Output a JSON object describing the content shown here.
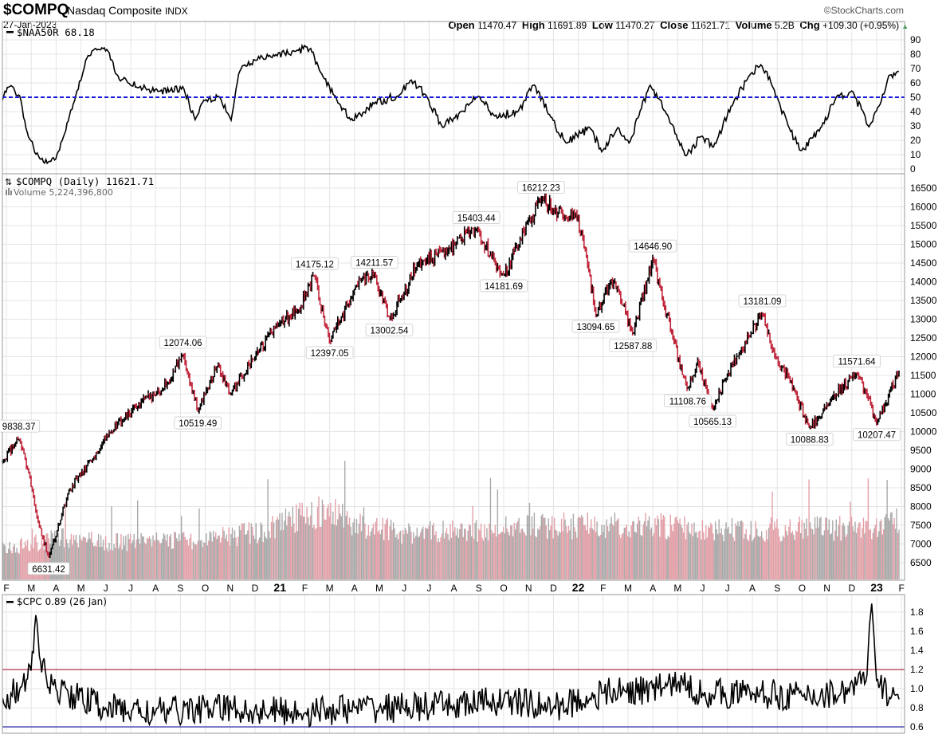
{
  "header": {
    "symbol": "$COMPQ",
    "name": "Nasdaq Composite",
    "exchange": "INDX",
    "date": "27-Jan-2023",
    "copyright": "©StockCharts.com",
    "open_label": "Open",
    "open": "11470.47",
    "high_label": "High",
    "high": "11691.89",
    "low_label": "Low",
    "low": "11470.27",
    "close_label": "Close",
    "close": "11621.71",
    "volume_label": "Volume",
    "volume": "5.2B",
    "chg_label": "Chg",
    "chg": "+109.30 (+0.95%)"
  },
  "colors": {
    "up": "#000000",
    "down": "#c0253a",
    "vol_up": "#a9a9a9",
    "vol_down": "#e2a0a8",
    "ma_line": "#1a1adb",
    "cpc_high": "#b0304a",
    "cpc_low": "#3333aa",
    "grid": "#e4e4e4"
  },
  "chart_data": [
    {
      "type": "line",
      "title": "$NAA50R 68.18",
      "time_unit": "months since Feb 2020",
      "ylim": [
        0,
        90
      ],
      "yticks": [
        0,
        10,
        20,
        30,
        40,
        50,
        60,
        70,
        80,
        90
      ],
      "reference_line": 50,
      "points": [
        [
          -0.16,
          48
        ],
        [
          0.06,
          58
        ],
        [
          0.54,
          51
        ],
        [
          0.87,
          23
        ],
        [
          1.35,
          7
        ],
        [
          1.99,
          7
        ],
        [
          2.31,
          23
        ],
        [
          2.79,
          51
        ],
        [
          3.27,
          79
        ],
        [
          3.59,
          84
        ],
        [
          4.07,
          83
        ],
        [
          4.55,
          62
        ],
        [
          5.35,
          57
        ],
        [
          6.15,
          54
        ],
        [
          7.12,
          57
        ],
        [
          7.6,
          34
        ],
        [
          7.92,
          48
        ],
        [
          8.56,
          51
        ],
        [
          9.04,
          34
        ],
        [
          9.36,
          68
        ],
        [
          10.0,
          76
        ],
        [
          10.8,
          79
        ],
        [
          11.6,
          82
        ],
        [
          12.24,
          84
        ],
        [
          12.72,
          65
        ],
        [
          13.2,
          51
        ],
        [
          13.85,
          34
        ],
        [
          14.81,
          46
        ],
        [
          15.77,
          51
        ],
        [
          16.25,
          62
        ],
        [
          16.89,
          51
        ],
        [
          17.53,
          29
        ],
        [
          18.33,
          40
        ],
        [
          18.97,
          51
        ],
        [
          19.62,
          37
        ],
        [
          20.58,
          40
        ],
        [
          21.22,
          59
        ],
        [
          21.86,
          37
        ],
        [
          22.5,
          18
        ],
        [
          23.46,
          29
        ],
        [
          23.94,
          12
        ],
        [
          24.58,
          29
        ],
        [
          25.06,
          18
        ],
        [
          25.87,
          59
        ],
        [
          26.51,
          40
        ],
        [
          27.31,
          9
        ],
        [
          27.95,
          23
        ],
        [
          28.43,
          15
        ],
        [
          29.23,
          46
        ],
        [
          29.87,
          65
        ],
        [
          30.35,
          73
        ],
        [
          30.83,
          57
        ],
        [
          31.47,
          29
        ],
        [
          31.96,
          12
        ],
        [
          32.76,
          29
        ],
        [
          33.4,
          51
        ],
        [
          34.04,
          54
        ],
        [
          34.68,
          29
        ],
        [
          35.16,
          46
        ],
        [
          35.48,
          65
        ],
        [
          35.9,
          68
        ]
      ]
    },
    {
      "type": "ohlc",
      "title": "$COMPQ (Daily) 11621.71",
      "volume_label": "Volume 5,224,396,800",
      "time_unit": "months since Feb 2020",
      "ylim": [
        6500,
        16500
      ],
      "yticks": [
        6500,
        7000,
        7500,
        8000,
        8500,
        9000,
        9500,
        10000,
        10500,
        11000,
        11500,
        12000,
        12500,
        13000,
        13500,
        14000,
        14500,
        15000,
        15500,
        16000,
        16500
      ],
      "xticks": [
        "F",
        "M",
        "A",
        "M",
        "J",
        "J",
        "A",
        "S",
        "O",
        "N",
        "D",
        "21",
        "F",
        "M",
        "A",
        "M",
        "J",
        "J",
        "A",
        "S",
        "O",
        "N",
        "D",
        "22",
        "F",
        "M",
        "A",
        "M",
        "J",
        "J",
        "A",
        "S",
        "O",
        "N",
        "D",
        "23",
        "F"
      ],
      "close_points": [
        [
          -0.15,
          9200
        ],
        [
          0.5,
          9838.37
        ],
        [
          0.9,
          8900
        ],
        [
          1.2,
          7800
        ],
        [
          1.7,
          6631.42
        ],
        [
          2.5,
          8400
        ],
        [
          3.5,
          9300
        ],
        [
          4.2,
          10000
        ],
        [
          5.3,
          10700
        ],
        [
          6.5,
          11300
        ],
        [
          7.1,
          12074.06
        ],
        [
          7.7,
          10519.49
        ],
        [
          8.5,
          11800
        ],
        [
          9.0,
          11000
        ],
        [
          10.0,
          12000
        ],
        [
          11.0,
          12900
        ],
        [
          11.7,
          13200
        ],
        [
          12.4,
          14175.12
        ],
        [
          13.0,
          12397.05
        ],
        [
          14.0,
          13800
        ],
        [
          14.8,
          14211.57
        ],
        [
          15.4,
          13002.54
        ],
        [
          16.5,
          14400
        ],
        [
          17.5,
          14800
        ],
        [
          18.9,
          15403.44
        ],
        [
          19.5,
          14700
        ],
        [
          20.0,
          14181.69
        ],
        [
          21.5,
          16212.23
        ],
        [
          22.5,
          15700
        ],
        [
          22.9,
          15800
        ],
        [
          23.3,
          14800
        ],
        [
          23.7,
          13094.65
        ],
        [
          24.3,
          14000
        ],
        [
          24.6,
          13800
        ],
        [
          25.2,
          12587.88
        ],
        [
          26.0,
          14646.9
        ],
        [
          26.8,
          12500
        ],
        [
          27.4,
          11108.76
        ],
        [
          27.8,
          11900
        ],
        [
          28.4,
          10565.13
        ],
        [
          29.0,
          11500
        ],
        [
          30.4,
          13181.09
        ],
        [
          30.9,
          12000
        ],
        [
          31.5,
          11400
        ],
        [
          32.3,
          10088.83
        ],
        [
          33.2,
          10900
        ],
        [
          34.2,
          11571.64
        ],
        [
          34.6,
          11000
        ],
        [
          35.0,
          10207.47
        ],
        [
          35.9,
          11621.71
        ]
      ],
      "annotations": [
        {
          "label": "9838.37",
          "t": 0.5,
          "value": 9838.37,
          "pos": "above"
        },
        {
          "label": "6631.42",
          "t": 1.7,
          "value": 6631.42,
          "pos": "below"
        },
        {
          "label": "12074.06",
          "t": 7.1,
          "value": 12074.06,
          "pos": "above"
        },
        {
          "label": "10519.49",
          "t": 7.7,
          "value": 10519.49,
          "pos": "below"
        },
        {
          "label": "14175.12",
          "t": 12.4,
          "value": 14175.12,
          "pos": "above"
        },
        {
          "label": "12397.05",
          "t": 13.0,
          "value": 12397.05,
          "pos": "below"
        },
        {
          "label": "14211.57",
          "t": 14.8,
          "value": 14211.57,
          "pos": "above"
        },
        {
          "label": "13002.54",
          "t": 15.4,
          "value": 13002.54,
          "pos": "below"
        },
        {
          "label": "15403.44",
          "t": 18.9,
          "value": 15403.44,
          "pos": "above"
        },
        {
          "label": "14181.69",
          "t": 20.0,
          "value": 14181.69,
          "pos": "below"
        },
        {
          "label": "16212.23",
          "t": 21.5,
          "value": 16212.23,
          "pos": "above"
        },
        {
          "label": "13094.65",
          "t": 23.7,
          "value": 13094.65,
          "pos": "below"
        },
        {
          "label": "12587.88",
          "t": 25.2,
          "value": 12587.88,
          "pos": "below"
        },
        {
          "label": "14646.90",
          "t": 26.0,
          "value": 14646.9,
          "pos": "above"
        },
        {
          "label": "11108.76",
          "t": 27.4,
          "value": 11108.76,
          "pos": "below"
        },
        {
          "label": "10565.13",
          "t": 28.4,
          "value": 10565.13,
          "pos": "below"
        },
        {
          "label": "13181.09",
          "t": 30.4,
          "value": 13181.09,
          "pos": "above"
        },
        {
          "label": "10088.83",
          "t": 32.3,
          "value": 10088.83,
          "pos": "below"
        },
        {
          "label": "11571.64",
          "t": 34.2,
          "value": 11571.64,
          "pos": "above"
        },
        {
          "label": "10207.47",
          "t": 35.0,
          "value": 10207.47,
          "pos": "below"
        }
      ],
      "volume_billions": [
        [
          -0.15,
          2.6
        ],
        [
          1.0,
          3.2
        ],
        [
          2.0,
          3.8
        ],
        [
          4.0,
          3.3
        ],
        [
          6.0,
          3.5
        ],
        [
          8.0,
          3.6
        ],
        [
          10.0,
          4.2
        ],
        [
          12.0,
          5.8
        ],
        [
          13.0,
          6.2
        ],
        [
          14.0,
          5.0
        ],
        [
          16.0,
          4.2
        ],
        [
          19.0,
          4.3
        ],
        [
          21.0,
          4.8
        ],
        [
          23.0,
          4.8
        ],
        [
          26.0,
          4.8
        ],
        [
          30.0,
          4.4
        ],
        [
          33.0,
          4.6
        ],
        [
          35.0,
          4.4
        ],
        [
          35.9,
          5.2
        ]
      ]
    },
    {
      "type": "line",
      "title": "$CPC 0.89 (26 Jan)",
      "time_unit": "months since Feb 2020",
      "ylim": [
        0.6,
        1.8
      ],
      "yticks": [
        0.6,
        0.8,
        1.0,
        1.2,
        1.4,
        1.6,
        1.8
      ],
      "reference_lines": [
        1.2,
        0.6
      ],
      "points": [
        [
          -0.15,
          0.9
        ],
        [
          0.6,
          1.0
        ],
        [
          1.0,
          1.2
        ],
        [
          1.2,
          1.8
        ],
        [
          1.4,
          1.2
        ],
        [
          2.0,
          1.0
        ],
        [
          4.0,
          0.8
        ],
        [
          6.0,
          0.75
        ],
        [
          8.0,
          0.8
        ],
        [
          10.0,
          0.78
        ],
        [
          12.0,
          0.75
        ],
        [
          14.0,
          0.8
        ],
        [
          16.0,
          0.8
        ],
        [
          18.0,
          0.82
        ],
        [
          20.0,
          0.88
        ],
        [
          22.0,
          0.8
        ],
        [
          24.0,
          0.95
        ],
        [
          26.0,
          1.0
        ],
        [
          27.0,
          1.05
        ],
        [
          28.0,
          0.95
        ],
        [
          30.0,
          0.95
        ],
        [
          32.0,
          0.92
        ],
        [
          33.5,
          0.95
        ],
        [
          34.6,
          1.1
        ],
        [
          34.8,
          1.9
        ],
        [
          35.0,
          1.05
        ],
        [
          35.9,
          0.89
        ]
      ]
    }
  ]
}
